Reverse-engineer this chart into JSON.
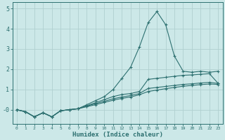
{
  "xlabel": "Humidex (Indice chaleur)",
  "bg_color": "#cce8e8",
  "grid_color": "#b0d0d0",
  "line_color": "#2d7070",
  "xlim": [
    -0.5,
    23.5
  ],
  "ylim": [
    -0.7,
    5.3
  ],
  "xticks": [
    0,
    1,
    2,
    3,
    4,
    5,
    6,
    7,
    8,
    9,
    10,
    11,
    12,
    13,
    14,
    15,
    16,
    17,
    18,
    19,
    20,
    21,
    22,
    23
  ],
  "yticks": [
    0,
    1,
    2,
    3,
    4,
    5
  ],
  "ytick_labels": [
    "-0",
    "1",
    "2",
    "3",
    "4",
    "5"
  ],
  "lines": [
    {
      "x": [
        0,
        1,
        2,
        3,
        4,
        5,
        6,
        7,
        8,
        9,
        10,
        11,
        12,
        13,
        14,
        15,
        16,
        17,
        18,
        19,
        20,
        21,
        22,
        23
      ],
      "y": [
        0.0,
        -0.1,
        -0.35,
        -0.15,
        -0.35,
        -0.05,
        0.0,
        0.05,
        0.25,
        0.45,
        0.65,
        1.0,
        1.55,
        2.1,
        3.1,
        4.3,
        4.85,
        4.2,
        2.65,
        1.9,
        1.85,
        1.9,
        1.85,
        1.9
      ]
    },
    {
      "x": [
        0,
        1,
        2,
        3,
        4,
        5,
        6,
        7,
        8,
        9,
        10,
        11,
        12,
        13,
        14,
        15,
        16,
        17,
        18,
        19,
        20,
        21,
        22,
        23
      ],
      "y": [
        0.0,
        -0.1,
        -0.35,
        -0.15,
        -0.35,
        -0.05,
        0.0,
        0.05,
        0.2,
        0.35,
        0.5,
        0.65,
        0.75,
        0.8,
        0.9,
        1.5,
        1.55,
        1.6,
        1.65,
        1.7,
        1.72,
        1.75,
        1.78,
        1.3
      ]
    },
    {
      "x": [
        0,
        1,
        2,
        3,
        4,
        5,
        6,
        7,
        8,
        9,
        10,
        11,
        12,
        13,
        14,
        15,
        16,
        17,
        18,
        19,
        20,
        21,
        22,
        23
      ],
      "y": [
        0.0,
        -0.1,
        -0.35,
        -0.15,
        -0.35,
        -0.05,
        0.0,
        0.05,
        0.18,
        0.3,
        0.42,
        0.54,
        0.63,
        0.7,
        0.8,
        1.05,
        1.1,
        1.15,
        1.2,
        1.25,
        1.28,
        1.32,
        1.35,
        1.3
      ]
    },
    {
      "x": [
        0,
        1,
        2,
        3,
        4,
        5,
        6,
        7,
        8,
        9,
        10,
        11,
        12,
        13,
        14,
        15,
        16,
        17,
        18,
        19,
        20,
        21,
        22,
        23
      ],
      "y": [
        0.0,
        -0.1,
        -0.35,
        -0.15,
        -0.35,
        -0.05,
        0.0,
        0.05,
        0.15,
        0.25,
        0.36,
        0.47,
        0.56,
        0.63,
        0.74,
        0.9,
        0.97,
        1.04,
        1.1,
        1.16,
        1.2,
        1.24,
        1.27,
        1.25
      ]
    }
  ]
}
